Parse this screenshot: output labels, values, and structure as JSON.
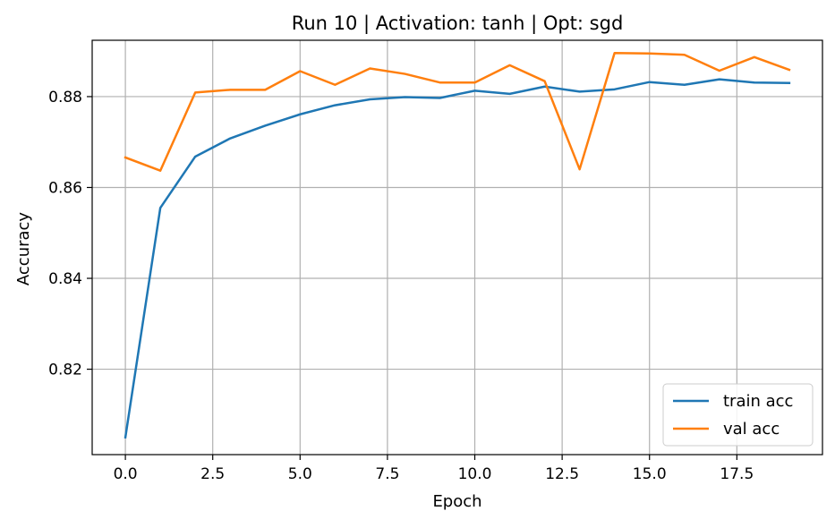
{
  "chart_data": {
    "type": "line",
    "title": "Run 10 | Activation: tanh | Opt: sgd",
    "xlabel": "Epoch",
    "ylabel": "Accuracy",
    "xlim": [
      -0.95,
      19.95
    ],
    "ylim": [
      0.8012,
      0.8924
    ],
    "x_ticks": [
      0.0,
      2.5,
      5.0,
      7.5,
      10.0,
      12.5,
      15.0,
      17.5
    ],
    "x_tick_labels": [
      "0.0",
      "2.5",
      "5.0",
      "7.5",
      "10.0",
      "12.5",
      "15.0",
      "17.5"
    ],
    "y_ticks": [
      0.82,
      0.84,
      0.86,
      0.88
    ],
    "y_tick_labels": [
      "0.82",
      "0.84",
      "0.86",
      "0.88"
    ],
    "grid": true,
    "legend_position": "lower-right",
    "x": [
      0,
      1,
      2,
      3,
      4,
      5,
      6,
      7,
      8,
      9,
      10,
      11,
      12,
      13,
      14,
      15,
      16,
      17,
      18,
      19
    ],
    "series": [
      {
        "name": "train acc",
        "color": "#1f77b4",
        "values": [
          0.805,
          0.8555,
          0.8668,
          0.8708,
          0.8736,
          0.8761,
          0.8781,
          0.8794,
          0.8799,
          0.8797,
          0.8813,
          0.8806,
          0.8822,
          0.8811,
          0.8816,
          0.8832,
          0.8826,
          0.8838,
          0.8831,
          0.883
        ]
      },
      {
        "name": "val acc",
        "color": "#ff7f0e",
        "values": [
          0.8666,
          0.8637,
          0.8809,
          0.8815,
          0.8815,
          0.8856,
          0.8826,
          0.8862,
          0.885,
          0.8831,
          0.8831,
          0.8869,
          0.8834,
          0.864,
          0.8896,
          0.8895,
          0.8892,
          0.8857,
          0.8887,
          0.8859
        ]
      }
    ]
  }
}
